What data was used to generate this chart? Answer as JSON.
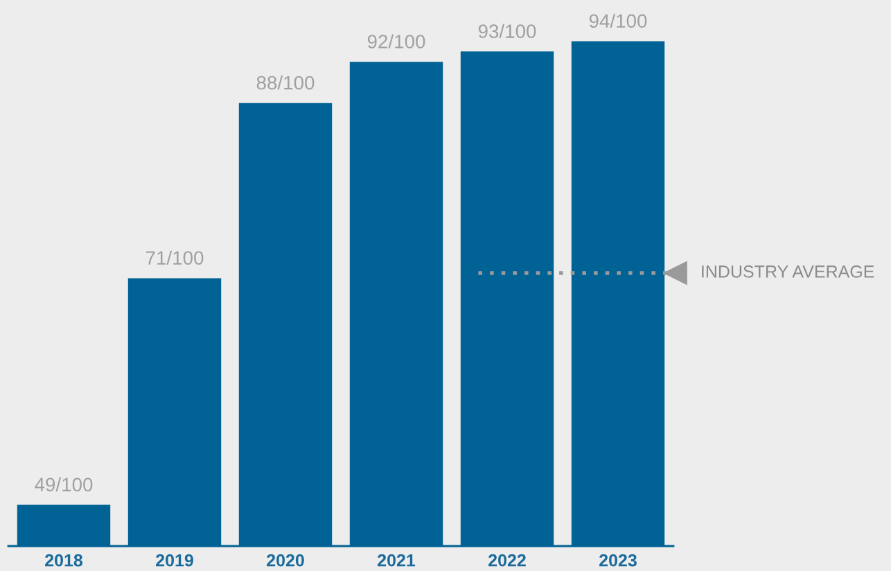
{
  "chart_data": {
    "type": "bar",
    "categories": [
      "2018",
      "2019",
      "2020",
      "2021",
      "2022",
      "2023"
    ],
    "values": [
      49,
      71,
      88,
      92,
      93,
      94
    ],
    "value_labels": [
      "49/100",
      "71/100",
      "88/100",
      "92/100",
      "93/100",
      "94/100"
    ],
    "color": "#006295",
    "ylim": [
      45,
      98
    ],
    "tick_labels": "x",
    "grid": false,
    "ref_lines": [
      {
        "axis": "y",
        "value": 71.5,
        "label": "INDUSTRY AVERAGE",
        "color": "#9a9a9a",
        "line_style": "dotted"
      }
    ]
  }
}
